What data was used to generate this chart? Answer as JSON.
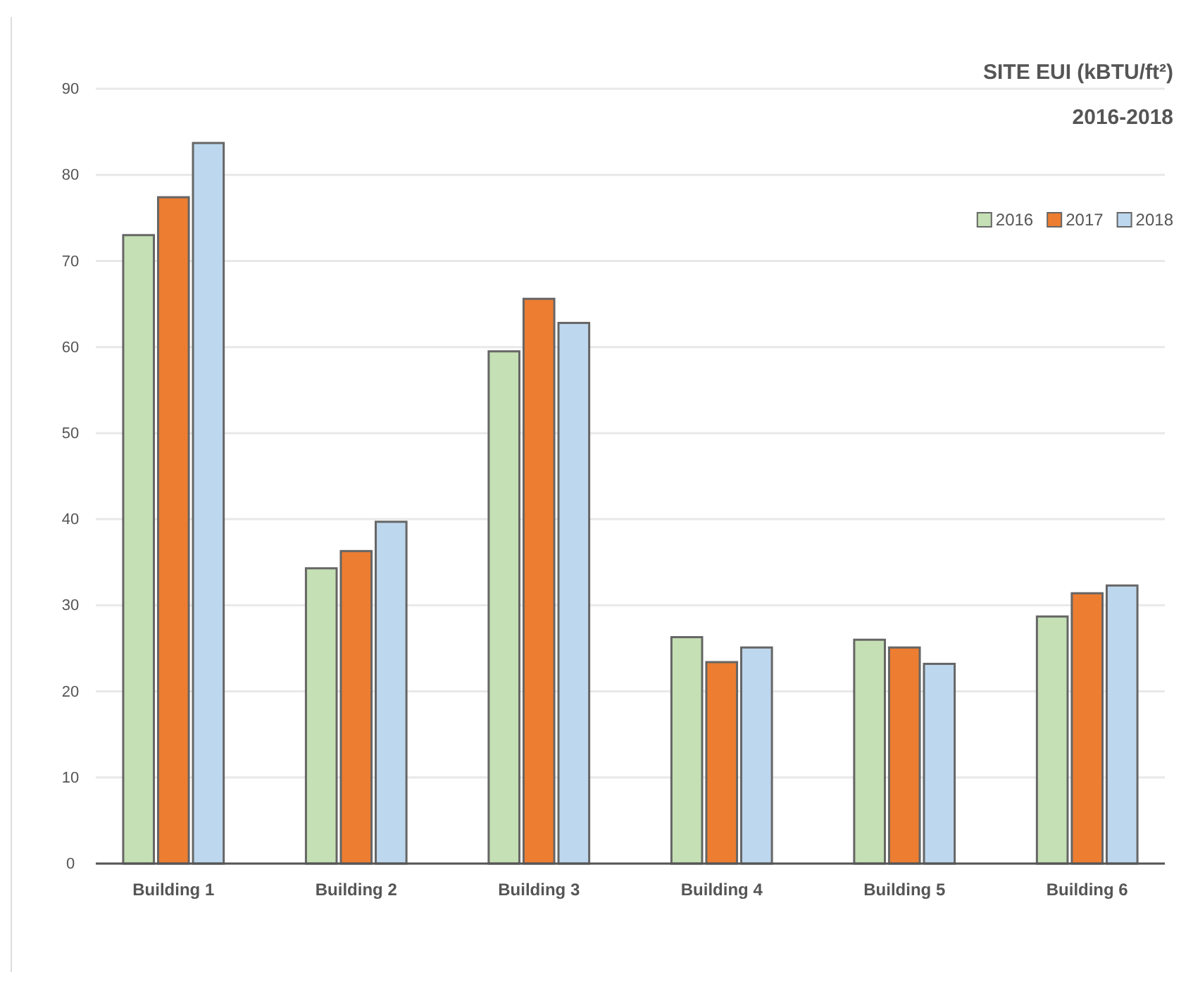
{
  "chart_data": {
    "type": "bar",
    "title": "SITE EUI (kBTU/ft²)",
    "subtitle": "2016-2018",
    "categories": [
      "Building 1",
      "Building 2",
      "Building 3",
      "Building 4",
      "Building 5",
      "Building 6"
    ],
    "series": [
      {
        "name": "2016",
        "color": "#c5e0b4",
        "values": [
          73.0,
          34.3,
          59.5,
          26.3,
          26.0,
          28.7
        ]
      },
      {
        "name": "2017",
        "color": "#ed7d31",
        "values": [
          77.4,
          36.3,
          65.6,
          23.4,
          25.1,
          31.4
        ]
      },
      {
        "name": "2018",
        "color": "#bdd7ee",
        "values": [
          83.7,
          39.7,
          62.8,
          25.1,
          23.2,
          32.3
        ]
      }
    ],
    "ylim": [
      0,
      90
    ],
    "yticks": [
      0,
      10,
      20,
      30,
      40,
      50,
      60,
      70,
      80,
      90
    ],
    "grid": "y",
    "legend": "top right"
  }
}
